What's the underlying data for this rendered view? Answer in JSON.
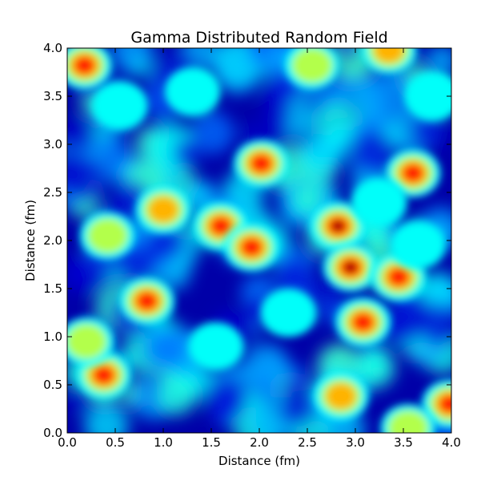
{
  "chart_data": {
    "type": "heatmap",
    "title": "Gamma Distributed Random Field",
    "xlabel": "Distance (fm)",
    "ylabel": "Distance (fm)",
    "xlim": [
      0.0,
      4.0
    ],
    "ylim": [
      0.0,
      4.0
    ],
    "xticks": [
      "0.0",
      "0.5",
      "1.0",
      "1.5",
      "2.0",
      "2.5",
      "3.0",
      "3.5",
      "4.0"
    ],
    "yticks": [
      "0.0",
      "0.5",
      "1.0",
      "1.5",
      "2.0",
      "2.5",
      "3.0",
      "3.5",
      "4.0"
    ],
    "colormap": "jet",
    "grid": false,
    "hotspots": [
      {
        "x": 0.18,
        "y": 3.82,
        "value": 0.95
      },
      {
        "x": 2.02,
        "y": 2.8,
        "value": 0.85
      },
      {
        "x": 3.6,
        "y": 2.7,
        "value": 0.9
      },
      {
        "x": 1.0,
        "y": 2.32,
        "value": 0.8
      },
      {
        "x": 1.6,
        "y": 2.15,
        "value": 0.95
      },
      {
        "x": 2.82,
        "y": 2.15,
        "value": 1.0
      },
      {
        "x": 1.92,
        "y": 1.93,
        "value": 0.85
      },
      {
        "x": 2.95,
        "y": 1.72,
        "value": 1.0
      },
      {
        "x": 3.45,
        "y": 1.62,
        "value": 0.95
      },
      {
        "x": 0.83,
        "y": 1.37,
        "value": 0.95
      },
      {
        "x": 3.08,
        "y": 1.15,
        "value": 0.85
      },
      {
        "x": 0.38,
        "y": 0.6,
        "value": 0.9
      },
      {
        "x": 2.85,
        "y": 0.38,
        "value": 0.8
      },
      {
        "x": 3.98,
        "y": 0.3,
        "value": 0.85
      },
      {
        "x": 3.35,
        "y": 3.98,
        "value": 0.8
      },
      {
        "x": 2.55,
        "y": 3.82,
        "value": 0.65
      },
      {
        "x": 3.55,
        "y": 0.05,
        "value": 0.65
      },
      {
        "x": 0.42,
        "y": 2.05,
        "value": 0.6
      },
      {
        "x": 0.2,
        "y": 0.95,
        "value": 0.55
      },
      {
        "x": 2.3,
        "y": 1.25,
        "value": 0.45
      },
      {
        "x": 3.25,
        "y": 2.4,
        "value": 0.45
      },
      {
        "x": 3.65,
        "y": 1.95,
        "value": 0.45
      },
      {
        "x": 1.55,
        "y": 0.9,
        "value": 0.4
      },
      {
        "x": 0.55,
        "y": 3.4,
        "value": 0.4
      },
      {
        "x": 1.3,
        "y": 3.55,
        "value": 0.4
      },
      {
        "x": 3.8,
        "y": 3.5,
        "value": 0.45
      }
    ]
  }
}
